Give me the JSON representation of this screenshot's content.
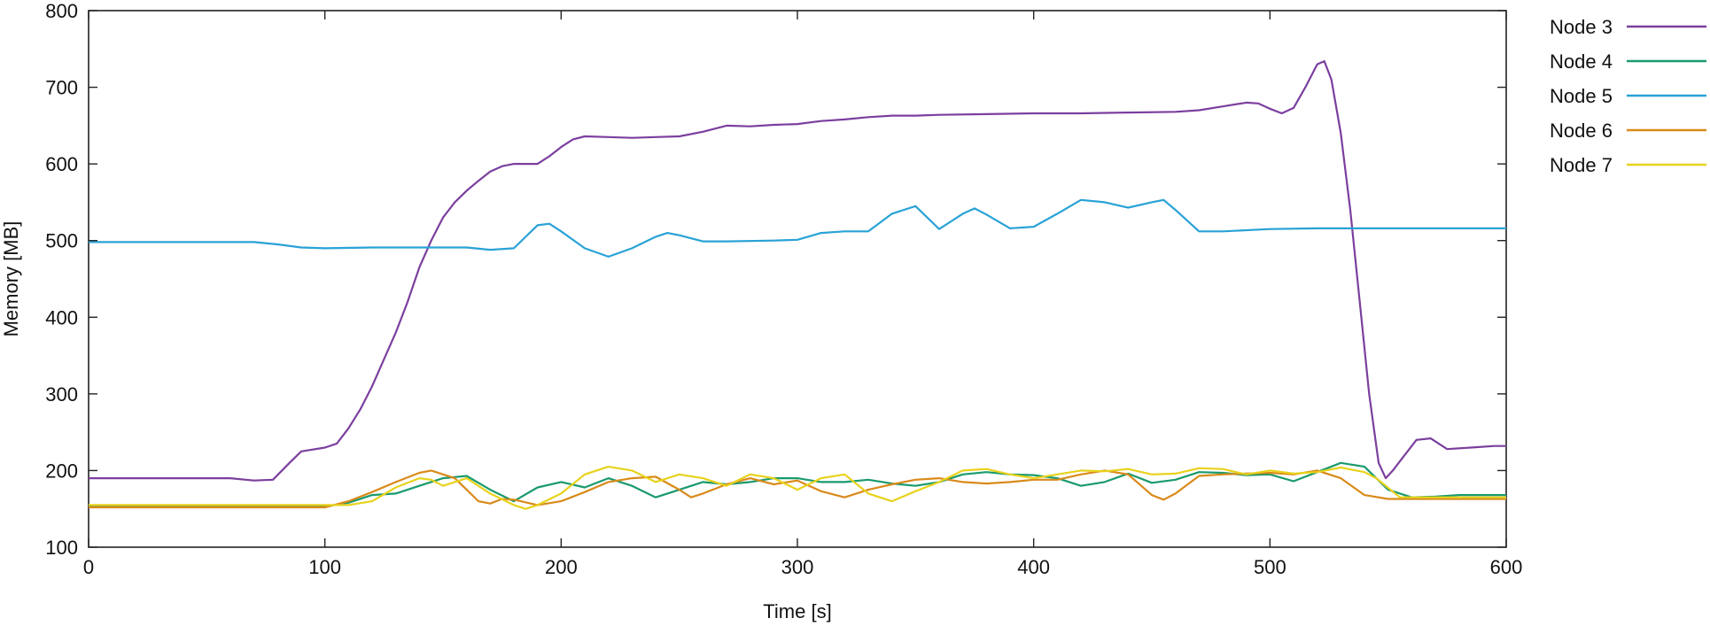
{
  "chart_data": {
    "type": "line",
    "xlabel": "Time [s]",
    "ylabel": "Memory [MB]",
    "xlim": [
      0,
      600
    ],
    "ylim": [
      100,
      800
    ],
    "xticks": [
      0,
      100,
      200,
      300,
      400,
      500,
      600
    ],
    "yticks": [
      100,
      200,
      300,
      400,
      500,
      600,
      700,
      800
    ],
    "grid": false,
    "legend_position": "right",
    "series": [
      {
        "name": "Node 3",
        "color": "#7b3f9e",
        "points": [
          [
            0,
            190
          ],
          [
            20,
            190
          ],
          [
            40,
            190
          ],
          [
            60,
            190
          ],
          [
            70,
            187
          ],
          [
            78,
            188
          ],
          [
            85,
            210
          ],
          [
            90,
            225
          ],
          [
            100,
            230
          ],
          [
            105,
            235
          ],
          [
            110,
            255
          ],
          [
            115,
            280
          ],
          [
            120,
            310
          ],
          [
            125,
            345
          ],
          [
            130,
            380
          ],
          [
            135,
            420
          ],
          [
            140,
            465
          ],
          [
            145,
            500
          ],
          [
            150,
            530
          ],
          [
            155,
            550
          ],
          [
            160,
            565
          ],
          [
            165,
            578
          ],
          [
            170,
            590
          ],
          [
            175,
            597
          ],
          [
            180,
            600
          ],
          [
            185,
            600
          ],
          [
            190,
            600
          ],
          [
            195,
            610
          ],
          [
            200,
            622
          ],
          [
            205,
            632
          ],
          [
            210,
            636
          ],
          [
            220,
            635
          ],
          [
            230,
            634
          ],
          [
            240,
            635
          ],
          [
            250,
            636
          ],
          [
            260,
            642
          ],
          [
            270,
            650
          ],
          [
            280,
            649
          ],
          [
            290,
            651
          ],
          [
            300,
            652
          ],
          [
            310,
            656
          ],
          [
            320,
            658
          ],
          [
            330,
            661
          ],
          [
            340,
            663
          ],
          [
            350,
            663
          ],
          [
            360,
            664
          ],
          [
            380,
            665
          ],
          [
            400,
            666
          ],
          [
            420,
            666
          ],
          [
            440,
            667
          ],
          [
            460,
            668
          ],
          [
            470,
            670
          ],
          [
            480,
            675
          ],
          [
            490,
            680
          ],
          [
            495,
            679
          ],
          [
            500,
            672
          ],
          [
            505,
            666
          ],
          [
            510,
            673
          ],
          [
            515,
            700
          ],
          [
            520,
            730
          ],
          [
            523,
            734
          ],
          [
            526,
            710
          ],
          [
            530,
            640
          ],
          [
            534,
            540
          ],
          [
            538,
            420
          ],
          [
            542,
            300
          ],
          [
            546,
            210
          ],
          [
            549,
            190
          ],
          [
            552,
            200
          ],
          [
            557,
            220
          ],
          [
            562,
            240
          ],
          [
            568,
            242
          ],
          [
            575,
            228
          ],
          [
            585,
            230
          ],
          [
            595,
            232
          ],
          [
            600,
            232
          ]
        ]
      },
      {
        "name": "Node 4",
        "color": "#1a9a6c",
        "points": [
          [
            0,
            153
          ],
          [
            50,
            153
          ],
          [
            100,
            153
          ],
          [
            110,
            158
          ],
          [
            120,
            168
          ],
          [
            130,
            170
          ],
          [
            140,
            180
          ],
          [
            150,
            190
          ],
          [
            160,
            193
          ],
          [
            170,
            175
          ],
          [
            180,
            160
          ],
          [
            190,
            178
          ],
          [
            200,
            185
          ],
          [
            210,
            178
          ],
          [
            220,
            190
          ],
          [
            230,
            180
          ],
          [
            240,
            165
          ],
          [
            250,
            175
          ],
          [
            260,
            185
          ],
          [
            270,
            182
          ],
          [
            280,
            185
          ],
          [
            290,
            190
          ],
          [
            300,
            190
          ],
          [
            310,
            185
          ],
          [
            320,
            185
          ],
          [
            330,
            188
          ],
          [
            340,
            183
          ],
          [
            350,
            180
          ],
          [
            360,
            185
          ],
          [
            370,
            195
          ],
          [
            380,
            198
          ],
          [
            390,
            195
          ],
          [
            400,
            194
          ],
          [
            410,
            190
          ],
          [
            420,
            180
          ],
          [
            430,
            185
          ],
          [
            440,
            196
          ],
          [
            450,
            184
          ],
          [
            460,
            188
          ],
          [
            470,
            198
          ],
          [
            480,
            197
          ],
          [
            490,
            194
          ],
          [
            500,
            195
          ],
          [
            510,
            186
          ],
          [
            520,
            198
          ],
          [
            530,
            210
          ],
          [
            540,
            205
          ],
          [
            550,
            175
          ],
          [
            560,
            165
          ],
          [
            570,
            166
          ],
          [
            580,
            168
          ],
          [
            600,
            168
          ]
        ]
      },
      {
        "name": "Node 5",
        "color": "#29a2d6",
        "points": [
          [
            0,
            498
          ],
          [
            40,
            498
          ],
          [
            70,
            498
          ],
          [
            80,
            495
          ],
          [
            90,
            491
          ],
          [
            100,
            490
          ],
          [
            120,
            491
          ],
          [
            140,
            491
          ],
          [
            160,
            491
          ],
          [
            170,
            488
          ],
          [
            180,
            490
          ],
          [
            185,
            505
          ],
          [
            190,
            520
          ],
          [
            195,
            522
          ],
          [
            200,
            512
          ],
          [
            210,
            490
          ],
          [
            220,
            479
          ],
          [
            230,
            490
          ],
          [
            240,
            505
          ],
          [
            245,
            510
          ],
          [
            250,
            507
          ],
          [
            260,
            499
          ],
          [
            270,
            499
          ],
          [
            290,
            500
          ],
          [
            300,
            501
          ],
          [
            310,
            510
          ],
          [
            320,
            512
          ],
          [
            330,
            512
          ],
          [
            340,
            535
          ],
          [
            350,
            545
          ],
          [
            360,
            515
          ],
          [
            370,
            535
          ],
          [
            375,
            542
          ],
          [
            380,
            534
          ],
          [
            390,
            516
          ],
          [
            400,
            518
          ],
          [
            410,
            535
          ],
          [
            420,
            553
          ],
          [
            430,
            550
          ],
          [
            440,
            543
          ],
          [
            450,
            550
          ],
          [
            455,
            553
          ],
          [
            460,
            540
          ],
          [
            470,
            512
          ],
          [
            480,
            512
          ],
          [
            500,
            515
          ],
          [
            520,
            516
          ],
          [
            560,
            516
          ],
          [
            600,
            516
          ]
        ]
      },
      {
        "name": "Node 6",
        "color": "#d98a1a",
        "points": [
          [
            0,
            152
          ],
          [
            50,
            152
          ],
          [
            100,
            152
          ],
          [
            110,
            160
          ],
          [
            120,
            172
          ],
          [
            130,
            185
          ],
          [
            140,
            197
          ],
          [
            145,
            200
          ],
          [
            155,
            190
          ],
          [
            160,
            175
          ],
          [
            165,
            160
          ],
          [
            170,
            157
          ],
          [
            175,
            163
          ],
          [
            180,
            162
          ],
          [
            190,
            155
          ],
          [
            200,
            160
          ],
          [
            210,
            172
          ],
          [
            220,
            185
          ],
          [
            230,
            190
          ],
          [
            240,
            192
          ],
          [
            250,
            175
          ],
          [
            255,
            165
          ],
          [
            260,
            170
          ],
          [
            270,
            182
          ],
          [
            280,
            190
          ],
          [
            290,
            182
          ],
          [
            300,
            187
          ],
          [
            310,
            173
          ],
          [
            320,
            165
          ],
          [
            330,
            175
          ],
          [
            340,
            182
          ],
          [
            350,
            188
          ],
          [
            360,
            190
          ],
          [
            370,
            185
          ],
          [
            380,
            183
          ],
          [
            390,
            185
          ],
          [
            400,
            188
          ],
          [
            410,
            188
          ],
          [
            420,
            195
          ],
          [
            430,
            200
          ],
          [
            440,
            195
          ],
          [
            450,
            168
          ],
          [
            455,
            162
          ],
          [
            460,
            170
          ],
          [
            470,
            193
          ],
          [
            480,
            195
          ],
          [
            490,
            196
          ],
          [
            500,
            197
          ],
          [
            510,
            195
          ],
          [
            520,
            200
          ],
          [
            530,
            190
          ],
          [
            540,
            168
          ],
          [
            550,
            163
          ],
          [
            600,
            163
          ]
        ]
      },
      {
        "name": "Node 7",
        "color": "#e8d21c",
        "points": [
          [
            0,
            155
          ],
          [
            50,
            155
          ],
          [
            100,
            155
          ],
          [
            110,
            155
          ],
          [
            120,
            160
          ],
          [
            130,
            178
          ],
          [
            140,
            190
          ],
          [
            145,
            188
          ],
          [
            150,
            180
          ],
          [
            160,
            190
          ],
          [
            170,
            170
          ],
          [
            180,
            155
          ],
          [
            185,
            150
          ],
          [
            190,
            155
          ],
          [
            200,
            170
          ],
          [
            210,
            195
          ],
          [
            220,
            205
          ],
          [
            230,
            200
          ],
          [
            240,
            185
          ],
          [
            250,
            195
          ],
          [
            260,
            190
          ],
          [
            270,
            180
          ],
          [
            280,
            195
          ],
          [
            290,
            190
          ],
          [
            300,
            175
          ],
          [
            310,
            190
          ],
          [
            320,
            195
          ],
          [
            330,
            170
          ],
          [
            340,
            160
          ],
          [
            350,
            173
          ],
          [
            360,
            185
          ],
          [
            370,
            200
          ],
          [
            380,
            202
          ],
          [
            390,
            195
          ],
          [
            400,
            190
          ],
          [
            410,
            195
          ],
          [
            420,
            200
          ],
          [
            430,
            199
          ],
          [
            440,
            202
          ],
          [
            450,
            195
          ],
          [
            460,
            196
          ],
          [
            470,
            203
          ],
          [
            480,
            202
          ],
          [
            490,
            195
          ],
          [
            500,
            200
          ],
          [
            510,
            196
          ],
          [
            520,
            198
          ],
          [
            530,
            204
          ],
          [
            540,
            198
          ],
          [
            545,
            190
          ],
          [
            555,
            165
          ],
          [
            600,
            165
          ]
        ]
      }
    ]
  }
}
